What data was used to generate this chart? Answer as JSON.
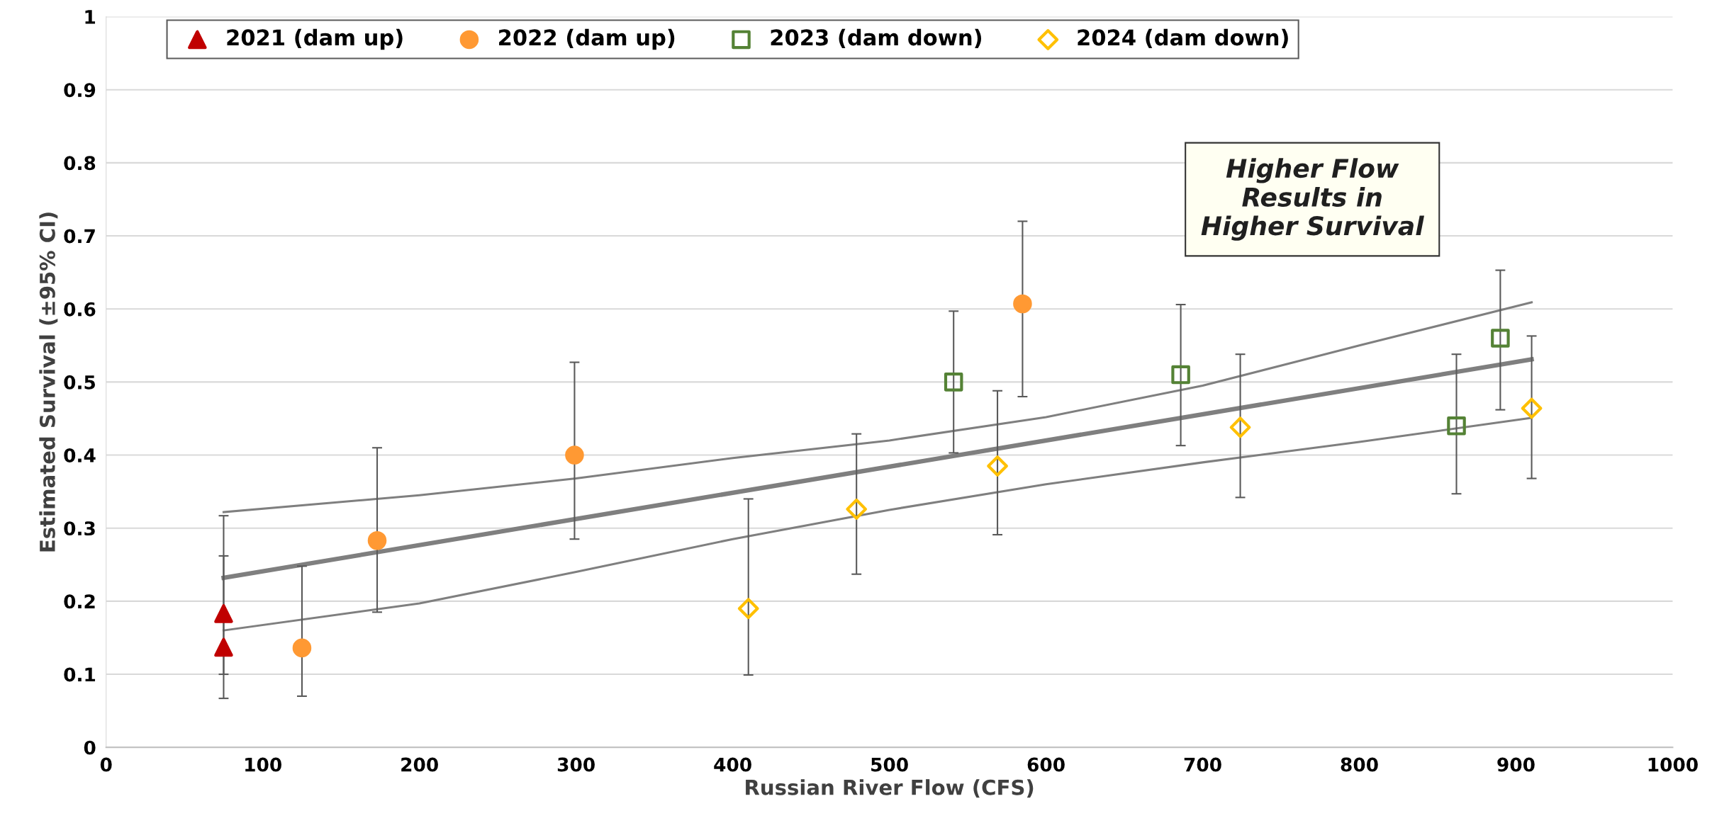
{
  "chart_data": {
    "type": "scatter",
    "xlabel": "Russian River Flow (CFS)",
    "ylabel": "Estimated Survival (±95% CI)",
    "xlim": [
      0,
      1000
    ],
    "xticks": [
      0,
      100,
      200,
      300,
      400,
      500,
      600,
      700,
      800,
      900,
      1000
    ],
    "ylim": [
      0,
      1
    ],
    "yticks": [
      0,
      0.1,
      0.2,
      0.3,
      0.4,
      0.5,
      0.6,
      0.7,
      0.8,
      0.9,
      1
    ],
    "grid": "y",
    "legend": "top",
    "annotations": [
      "Higher Flow\nResults in\nHigher Survival"
    ],
    "series": [
      {
        "type": "line",
        "color": "#7f7f7f",
        "marker": "none",
        "x": [
          75,
          200,
          300,
          400,
          500,
          600,
          700,
          800,
          910
        ],
        "values": [
          0.322,
          0.345,
          0.368,
          0.396,
          0.42,
          0.452,
          0.495,
          0.55,
          0.609
        ]
      },
      {
        "type": "line",
        "color": "#7f7f7f",
        "marker": "none",
        "x": [
          75,
          200,
          300,
          400,
          500,
          600,
          700,
          800,
          910
        ],
        "values": [
          0.16,
          0.197,
          0.24,
          0.285,
          0.325,
          0.36,
          0.39,
          0.418,
          0.451
        ]
      },
      {
        "type": "line",
        "color": "#7f7f7f",
        "marker": "none",
        "x": [
          75,
          910
        ],
        "values": [
          0.232,
          0.531
        ]
      },
      {
        "name": "2021 (dam up)",
        "color": "#c00000",
        "marker": "triangle",
        "x": [
          75,
          75
        ],
        "values": [
          0.183,
          0.137
        ],
        "errors": [
          [
            0.1,
            0.317
          ],
          [
            0.067,
            0.262
          ]
        ]
      },
      {
        "name": "2022 (dam up)",
        "color": "#ff9933",
        "marker": "circle",
        "x": [
          125,
          173,
          299,
          585
        ],
        "values": [
          0.136,
          0.283,
          0.4,
          0.607
        ],
        "errors": [
          [
            0.07,
            0.248
          ],
          [
            0.185,
            0.41
          ],
          [
            0.285,
            0.527
          ],
          [
            0.48,
            0.72
          ]
        ]
      },
      {
        "name": "2023 (dam down)",
        "color": "#548235",
        "marker": "square",
        "x": [
          541,
          686,
          862,
          890
        ],
        "values": [
          0.5,
          0.51,
          0.44,
          0.56
        ],
        "errors": [
          [
            0.403,
            0.597
          ],
          [
            0.413,
            0.606
          ],
          [
            0.347,
            0.538
          ],
          [
            0.462,
            0.653
          ]
        ]
      },
      {
        "name": "2024 (dam down)",
        "color": "#ffc000",
        "marker": "diamond",
        "x": [
          410,
          479,
          569,
          724,
          910
        ],
        "values": [
          0.19,
          0.326,
          0.385,
          0.438,
          0.464
        ],
        "errors": [
          [
            0.099,
            0.34
          ],
          [
            0.237,
            0.429
          ],
          [
            0.291,
            0.488
          ],
          [
            0.342,
            0.538
          ],
          [
            0.368,
            0.563
          ]
        ]
      }
    ]
  }
}
